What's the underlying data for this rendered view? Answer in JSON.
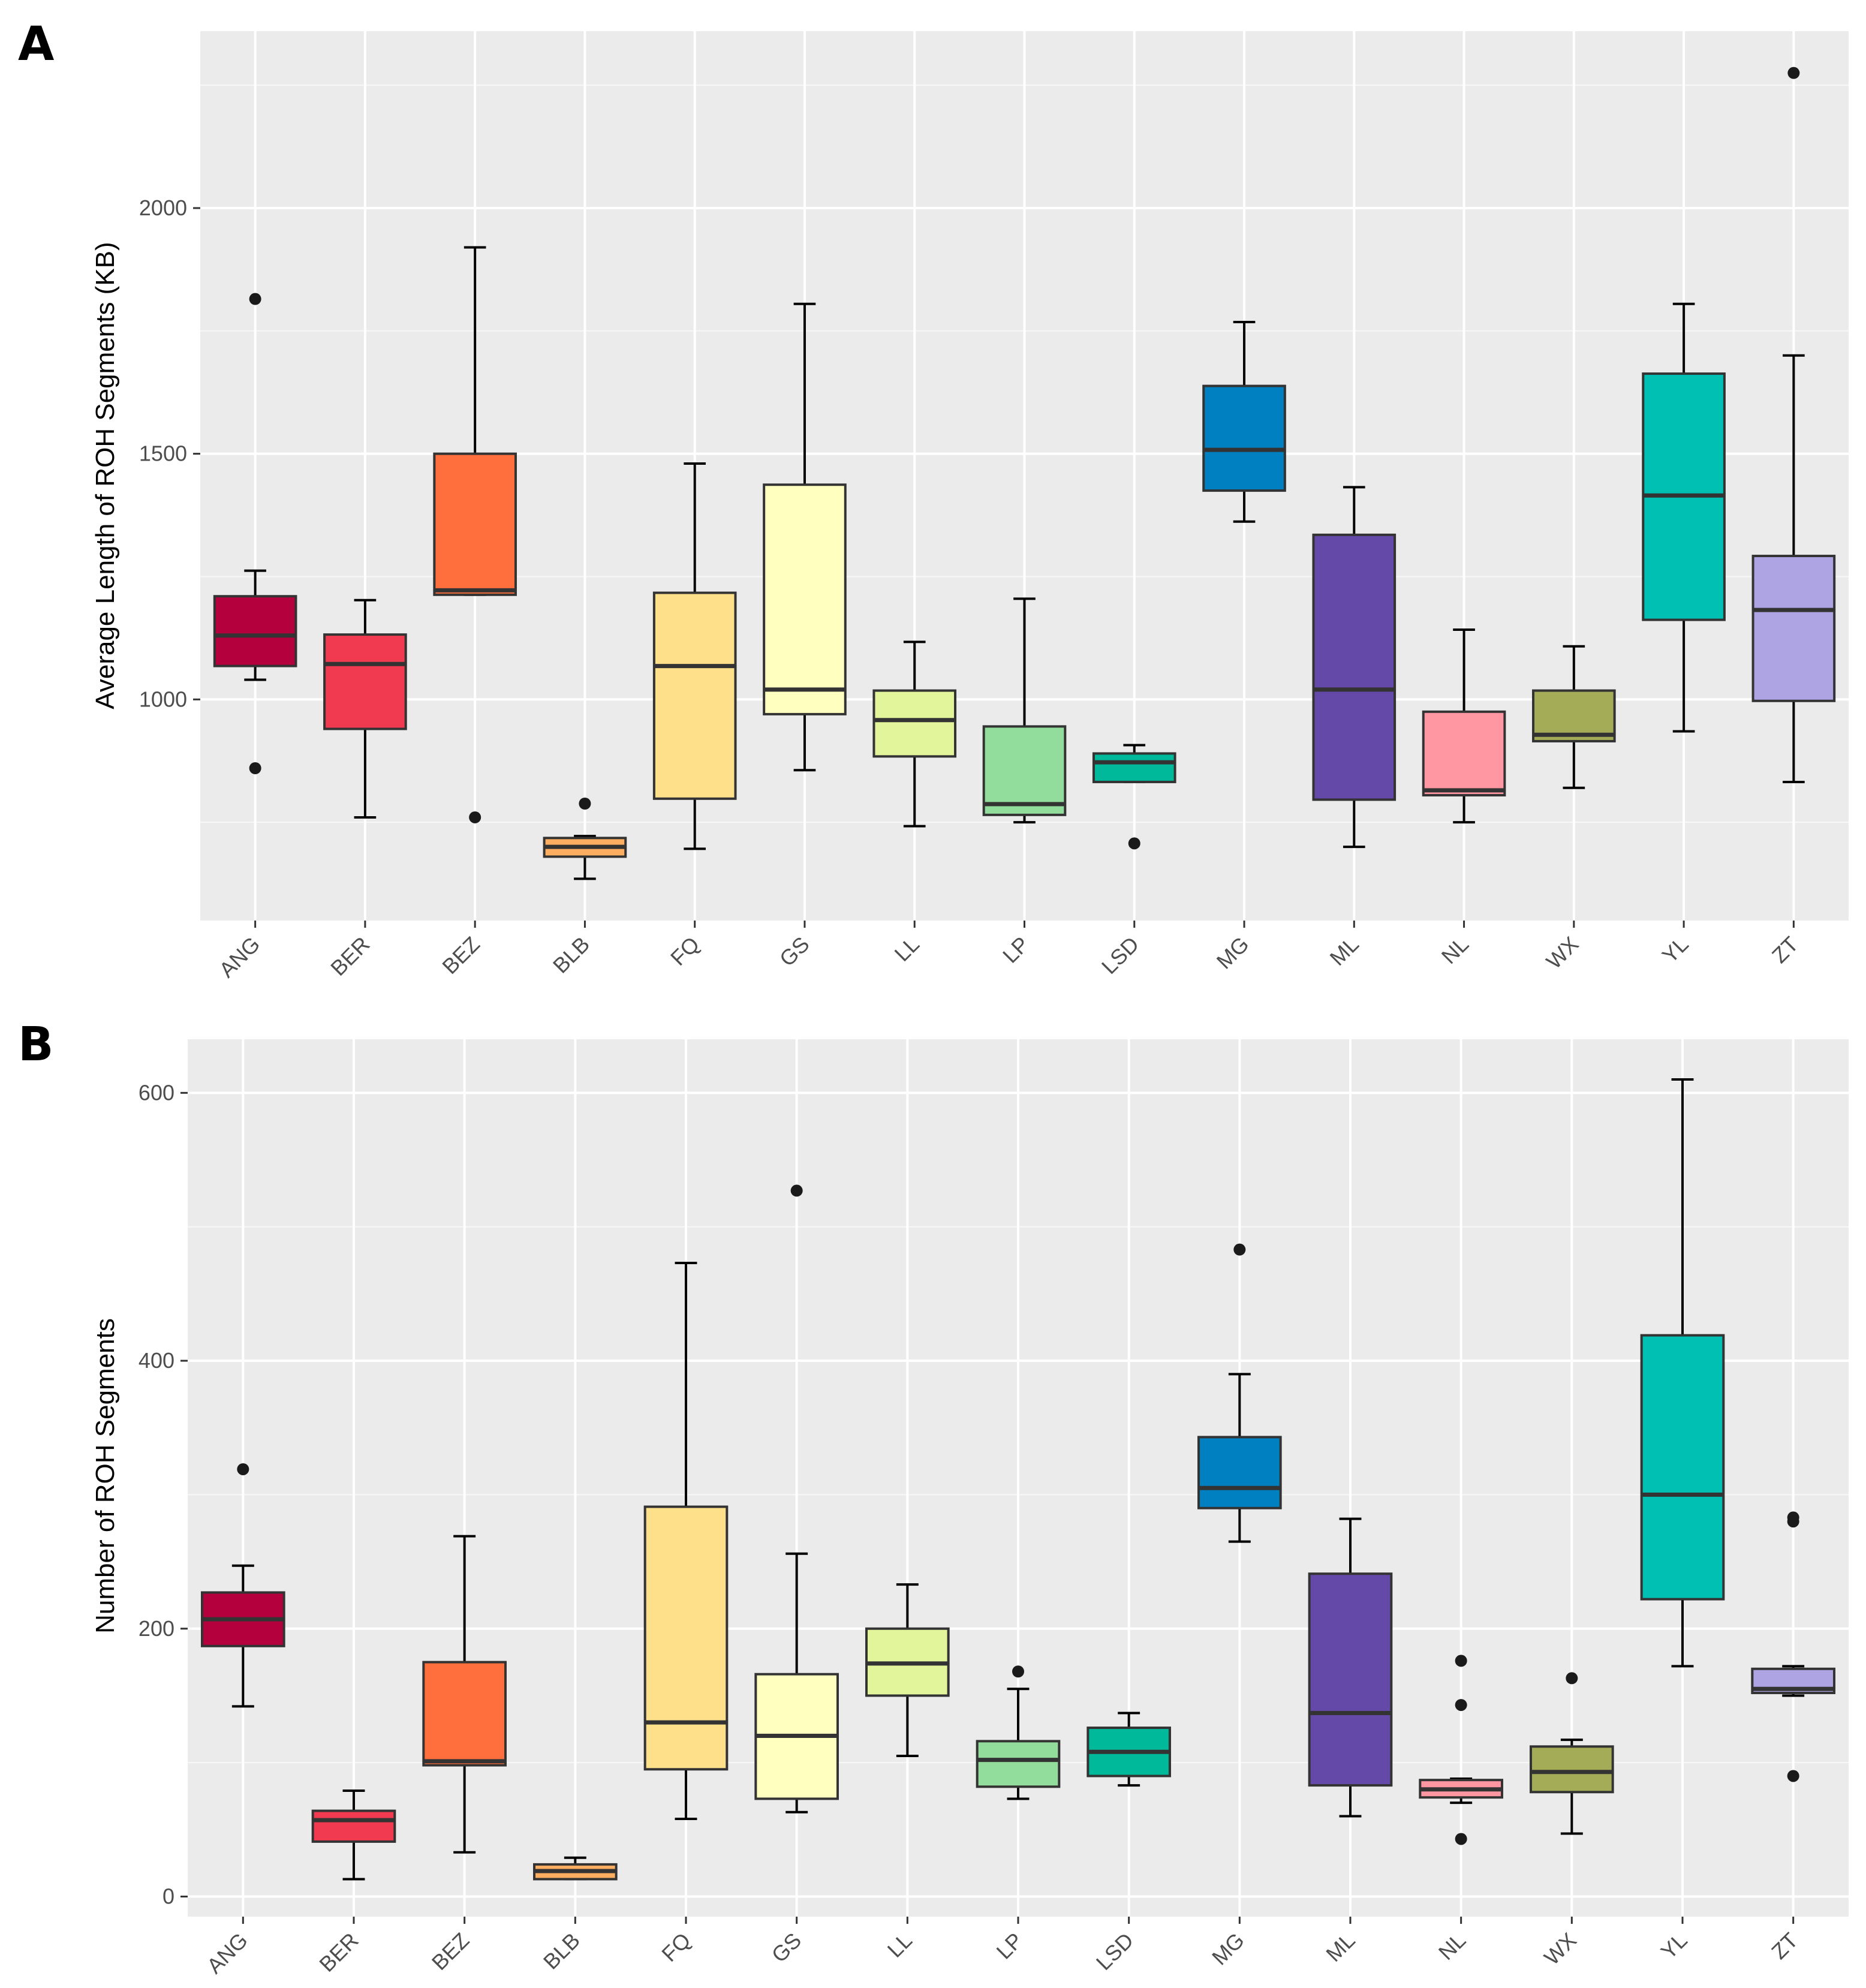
{
  "chart_data": [
    {
      "panel": "A",
      "type": "boxplot",
      "title": "",
      "xlabel": "",
      "ylabel": "Average Length of ROH Segments (KB)",
      "ylim": [
        550,
        2360
      ],
      "yticks": [
        1000,
        1500,
        2000
      ],
      "categories": [
        "ANG",
        "BER",
        "BEZ",
        "BLB",
        "FQ",
        "GS",
        "LL",
        "LP",
        "LSD",
        "MG",
        "ML",
        "NL",
        "WX",
        "YL",
        "ZT"
      ],
      "colors": [
        "#B5003E",
        "#F13A50",
        "#FF6F3D",
        "#FDAE61",
        "#FEE08B",
        "#FFFFBF",
        "#E2F59A",
        "#93DD9C",
        "#00B89A",
        "#0080C0",
        "#6449A8",
        "#FF97A3",
        "#A5AC58",
        "#00C0B4",
        "#AEA4E4"
      ],
      "boxes": [
        {
          "min": 1040,
          "q1": 1068,
          "median": 1130,
          "q3": 1210,
          "max": 1262,
          "outliers": [
            1815,
            860
          ]
        },
        {
          "min": 760,
          "q1": 940,
          "median": 1072,
          "q3": 1132,
          "max": 1202,
          "outliers": []
        },
        {
          "min": 1213,
          "q1": 1213,
          "median": 1222,
          "q3": 1500,
          "max": 1920,
          "outliers": [
            760
          ]
        },
        {
          "min": 635,
          "q1": 680,
          "median": 700,
          "q3": 718,
          "max": 722,
          "outliers": [
            788
          ]
        },
        {
          "min": 696,
          "q1": 798,
          "median": 1068,
          "q3": 1217,
          "max": 1480,
          "outliers": []
        },
        {
          "min": 856,
          "q1": 970,
          "median": 1020,
          "q3": 1437,
          "max": 1805,
          "outliers": []
        },
        {
          "min": 742,
          "q1": 884,
          "median": 958,
          "q3": 1018,
          "max": 1117,
          "outliers": []
        },
        {
          "min": 750,
          "q1": 765,
          "median": 787,
          "q3": 945,
          "max": 1205,
          "outliers": []
        },
        {
          "min": 832,
          "q1": 832,
          "median": 872,
          "q3": 890,
          "max": 907,
          "outliers": [
            707
          ]
        },
        {
          "min": 1362,
          "q1": 1425,
          "median": 1508,
          "q3": 1638,
          "max": 1768,
          "outliers": []
        },
        {
          "min": 700,
          "q1": 796,
          "median": 1020,
          "q3": 1335,
          "max": 1432,
          "outliers": []
        },
        {
          "min": 750,
          "q1": 805,
          "median": 815,
          "q3": 975,
          "max": 1142,
          "outliers": []
        },
        {
          "min": 820,
          "q1": 915,
          "median": 928,
          "q3": 1018,
          "max": 1108,
          "outliers": []
        },
        {
          "min": 935,
          "q1": 1162,
          "median": 1415,
          "q3": 1663,
          "max": 1805,
          "outliers": []
        },
        {
          "min": 832,
          "q1": 997,
          "median": 1182,
          "q3": 1292,
          "max": 1700,
          "outliers": [
            2275
          ]
        }
      ]
    },
    {
      "panel": "B",
      "type": "boxplot",
      "title": "",
      "xlabel": "",
      "ylabel": "Number of ROH Segments",
      "ylim": [
        -15,
        640
      ],
      "yticks": [
        0,
        200,
        400,
        600
      ],
      "categories": [
        "ANG",
        "BER",
        "BEZ",
        "BLB",
        "FQ",
        "GS",
        "LL",
        "LP",
        "LSD",
        "MG",
        "ML",
        "NL",
        "WX",
        "YL",
        "ZT"
      ],
      "colors": [
        "#B5003E",
        "#F13A50",
        "#FF6F3D",
        "#FDAE61",
        "#FEE08B",
        "#FFFFBF",
        "#E2F59A",
        "#93DD9C",
        "#00B89A",
        "#0080C0",
        "#6449A8",
        "#FF97A3",
        "#A5AC58",
        "#00C0B4",
        "#AEA4E4"
      ],
      "boxes": [
        {
          "min": 142,
          "q1": 187,
          "median": 207,
          "q3": 227,
          "max": 247,
          "outliers": [
            319
          ]
        },
        {
          "min": 13,
          "q1": 41,
          "median": 57,
          "q3": 64,
          "max": 79,
          "outliers": []
        },
        {
          "min": 33,
          "q1": 98,
          "median": 101,
          "q3": 175,
          "max": 269,
          "outliers": []
        },
        {
          "min": 13,
          "q1": 13,
          "median": 19,
          "q3": 24,
          "max": 29,
          "outliers": []
        },
        {
          "min": 58,
          "q1": 95,
          "median": 130,
          "q3": 291,
          "max": 473,
          "outliers": []
        },
        {
          "min": 63,
          "q1": 73,
          "median": 120,
          "q3": 166,
          "max": 256,
          "outliers": [
            527
          ]
        },
        {
          "min": 105,
          "q1": 150,
          "median": 174,
          "q3": 200,
          "max": 233,
          "outliers": []
        },
        {
          "min": 73,
          "q1": 82,
          "median": 102,
          "q3": 116,
          "max": 155,
          "outliers": [
            168
          ]
        },
        {
          "min": 83,
          "q1": 90,
          "median": 108,
          "q3": 126,
          "max": 137,
          "outliers": []
        },
        {
          "min": 265,
          "q1": 290,
          "median": 305,
          "q3": 343,
          "max": 390,
          "outliers": [
            483
          ]
        },
        {
          "min": 60,
          "q1": 83,
          "median": 137,
          "q3": 241,
          "max": 282,
          "outliers": []
        },
        {
          "min": 70,
          "q1": 74,
          "median": 80,
          "q3": 87,
          "max": 88,
          "outliers": [
            176,
            143,
            43
          ]
        },
        {
          "min": 47,
          "q1": 78,
          "median": 93,
          "q3": 112,
          "max": 117,
          "outliers": [
            163
          ]
        },
        {
          "min": 172,
          "q1": 222,
          "median": 300,
          "q3": 419,
          "max": 610,
          "outliers": []
        },
        {
          "min": 150,
          "q1": 152,
          "median": 155,
          "q3": 170,
          "max": 172,
          "outliers": [
            283,
            280,
            90
          ]
        }
      ]
    }
  ],
  "panel_labels": [
    "A",
    "B"
  ]
}
